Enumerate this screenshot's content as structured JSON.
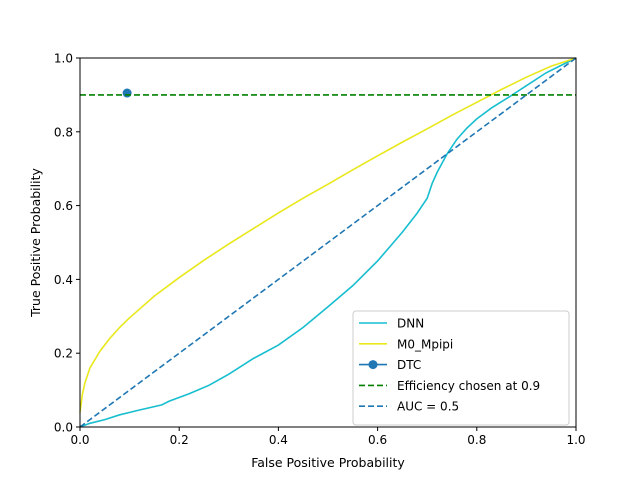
{
  "chart_data": {
    "type": "line",
    "title": "",
    "xlabel": "False Positive Probability",
    "ylabel": "True Positive Probability",
    "xlim": [
      0,
      1
    ],
    "ylim": [
      0,
      1
    ],
    "xticks": [
      0.0,
      0.2,
      0.4,
      0.6,
      0.8,
      1.0
    ],
    "yticks": [
      0.0,
      0.2,
      0.4,
      0.6,
      0.8,
      1.0
    ],
    "xtick_labels": [
      "0.0",
      "0.2",
      "0.4",
      "0.6",
      "0.8",
      "1.0"
    ],
    "ytick_labels": [
      "0.0",
      "0.2",
      "0.4",
      "0.6",
      "0.8",
      "1.0"
    ],
    "grid": false,
    "legend_position": "lower-right",
    "series": [
      {
        "name": "DNN",
        "color": "#17becf",
        "style": "solid",
        "x": [
          0.0,
          0.02,
          0.05,
          0.08,
          0.12,
          0.165,
          0.18,
          0.22,
          0.26,
          0.3,
          0.35,
          0.4,
          0.45,
          0.5,
          0.55,
          0.6,
          0.65,
          0.68,
          0.7,
          0.71,
          0.72,
          0.74,
          0.76,
          0.78,
          0.8,
          0.83,
          0.86,
          0.9,
          0.94,
          0.97,
          1.0
        ],
        "y": [
          0.0,
          0.01,
          0.02,
          0.033,
          0.046,
          0.06,
          0.07,
          0.09,
          0.113,
          0.143,
          0.186,
          0.222,
          0.27,
          0.326,
          0.383,
          0.45,
          0.528,
          0.58,
          0.62,
          0.66,
          0.69,
          0.74,
          0.78,
          0.81,
          0.835,
          0.865,
          0.89,
          0.925,
          0.96,
          0.98,
          1.0
        ]
      },
      {
        "name": "M0_Mpipi",
        "color": "#e8e81c",
        "style": "solid",
        "x": [
          0.0,
          0.005,
          0.01,
          0.02,
          0.04,
          0.06,
          0.08,
          0.1,
          0.15,
          0.2,
          0.25,
          0.3,
          0.35,
          0.4,
          0.45,
          0.5,
          0.55,
          0.6,
          0.65,
          0.7,
          0.75,
          0.8,
          0.85,
          0.9,
          0.95,
          1.0
        ],
        "y": [
          0.04,
          0.09,
          0.12,
          0.16,
          0.205,
          0.24,
          0.27,
          0.296,
          0.355,
          0.405,
          0.452,
          0.496,
          0.538,
          0.58,
          0.62,
          0.658,
          0.697,
          0.735,
          0.772,
          0.808,
          0.845,
          0.88,
          0.915,
          0.948,
          0.978,
          1.0
        ]
      },
      {
        "name": "DTC",
        "color": "#1f77b4",
        "style": "marker",
        "x": [
          0.095
        ],
        "y": [
          0.905
        ]
      },
      {
        "name": "Efficiency chosen at 0.9",
        "color": "#008000",
        "style": "dashed",
        "x": [
          0.0,
          1.0
        ],
        "y": [
          0.9,
          0.9
        ]
      },
      {
        "name": "AUC = 0.5",
        "color": "#1f77b4",
        "style": "dashed",
        "x": [
          0.0,
          1.0
        ],
        "y": [
          0.0,
          1.0
        ]
      }
    ]
  }
}
